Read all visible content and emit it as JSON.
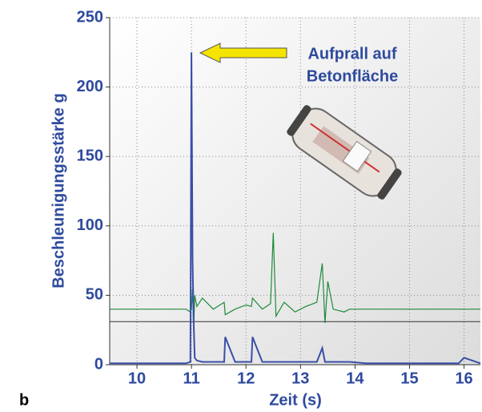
{
  "chart_data": {
    "type": "line",
    "panel_label": "b",
    "xlabel": "Zeit (s)",
    "ylabel": "Beschleunigungsstärke g",
    "annotation": [
      "Aufprall auf",
      "Betonfläche"
    ],
    "x": [
      9.5,
      10,
      10.5,
      10.9,
      10.98,
      11.0,
      11.02,
      11.04,
      11.06,
      11.1,
      11.2,
      11.4,
      11.6,
      11.62,
      11.8,
      12.0,
      12.1,
      12.12,
      12.3,
      12.45,
      12.5,
      12.55,
      12.7,
      12.9,
      13.1,
      13.3,
      13.4,
      13.45,
      13.5,
      13.6,
      13.8,
      13.9,
      14.2,
      14.6,
      15.0,
      15.5,
      15.9,
      16.0,
      16.3
    ],
    "series": [
      {
        "color": "#3a4fa8",
        "values": [
          1,
          1,
          1,
          1,
          2,
          225,
          76,
          30,
          5,
          3,
          2,
          2,
          2,
          20,
          2,
          2,
          2,
          20,
          2,
          2,
          2,
          2,
          2,
          2,
          2,
          2,
          12,
          2,
          2,
          2,
          2,
          2,
          1,
          1,
          1,
          1,
          1,
          5,
          1
        ]
      },
      {
        "color": "#1f8a3a",
        "values": [
          40,
          40,
          40,
          40,
          38,
          40,
          55,
          25,
          50,
          42,
          48,
          40,
          45,
          36,
          40,
          43,
          42,
          48,
          40,
          44,
          95,
          35,
          45,
          38,
          42,
          45,
          73,
          30,
          60,
          40,
          38,
          40,
          40,
          40,
          40,
          40,
          40,
          40,
          40
        ]
      }
    ],
    "reference_line": 31,
    "xlim": [
      9.5,
      16.3
    ],
    "ylim": [
      0,
      250
    ],
    "xticks": [
      10,
      11,
      12,
      13,
      14,
      15,
      16
    ],
    "yticks": [
      0,
      50,
      100,
      150,
      200,
      250
    ],
    "grid": true
  }
}
